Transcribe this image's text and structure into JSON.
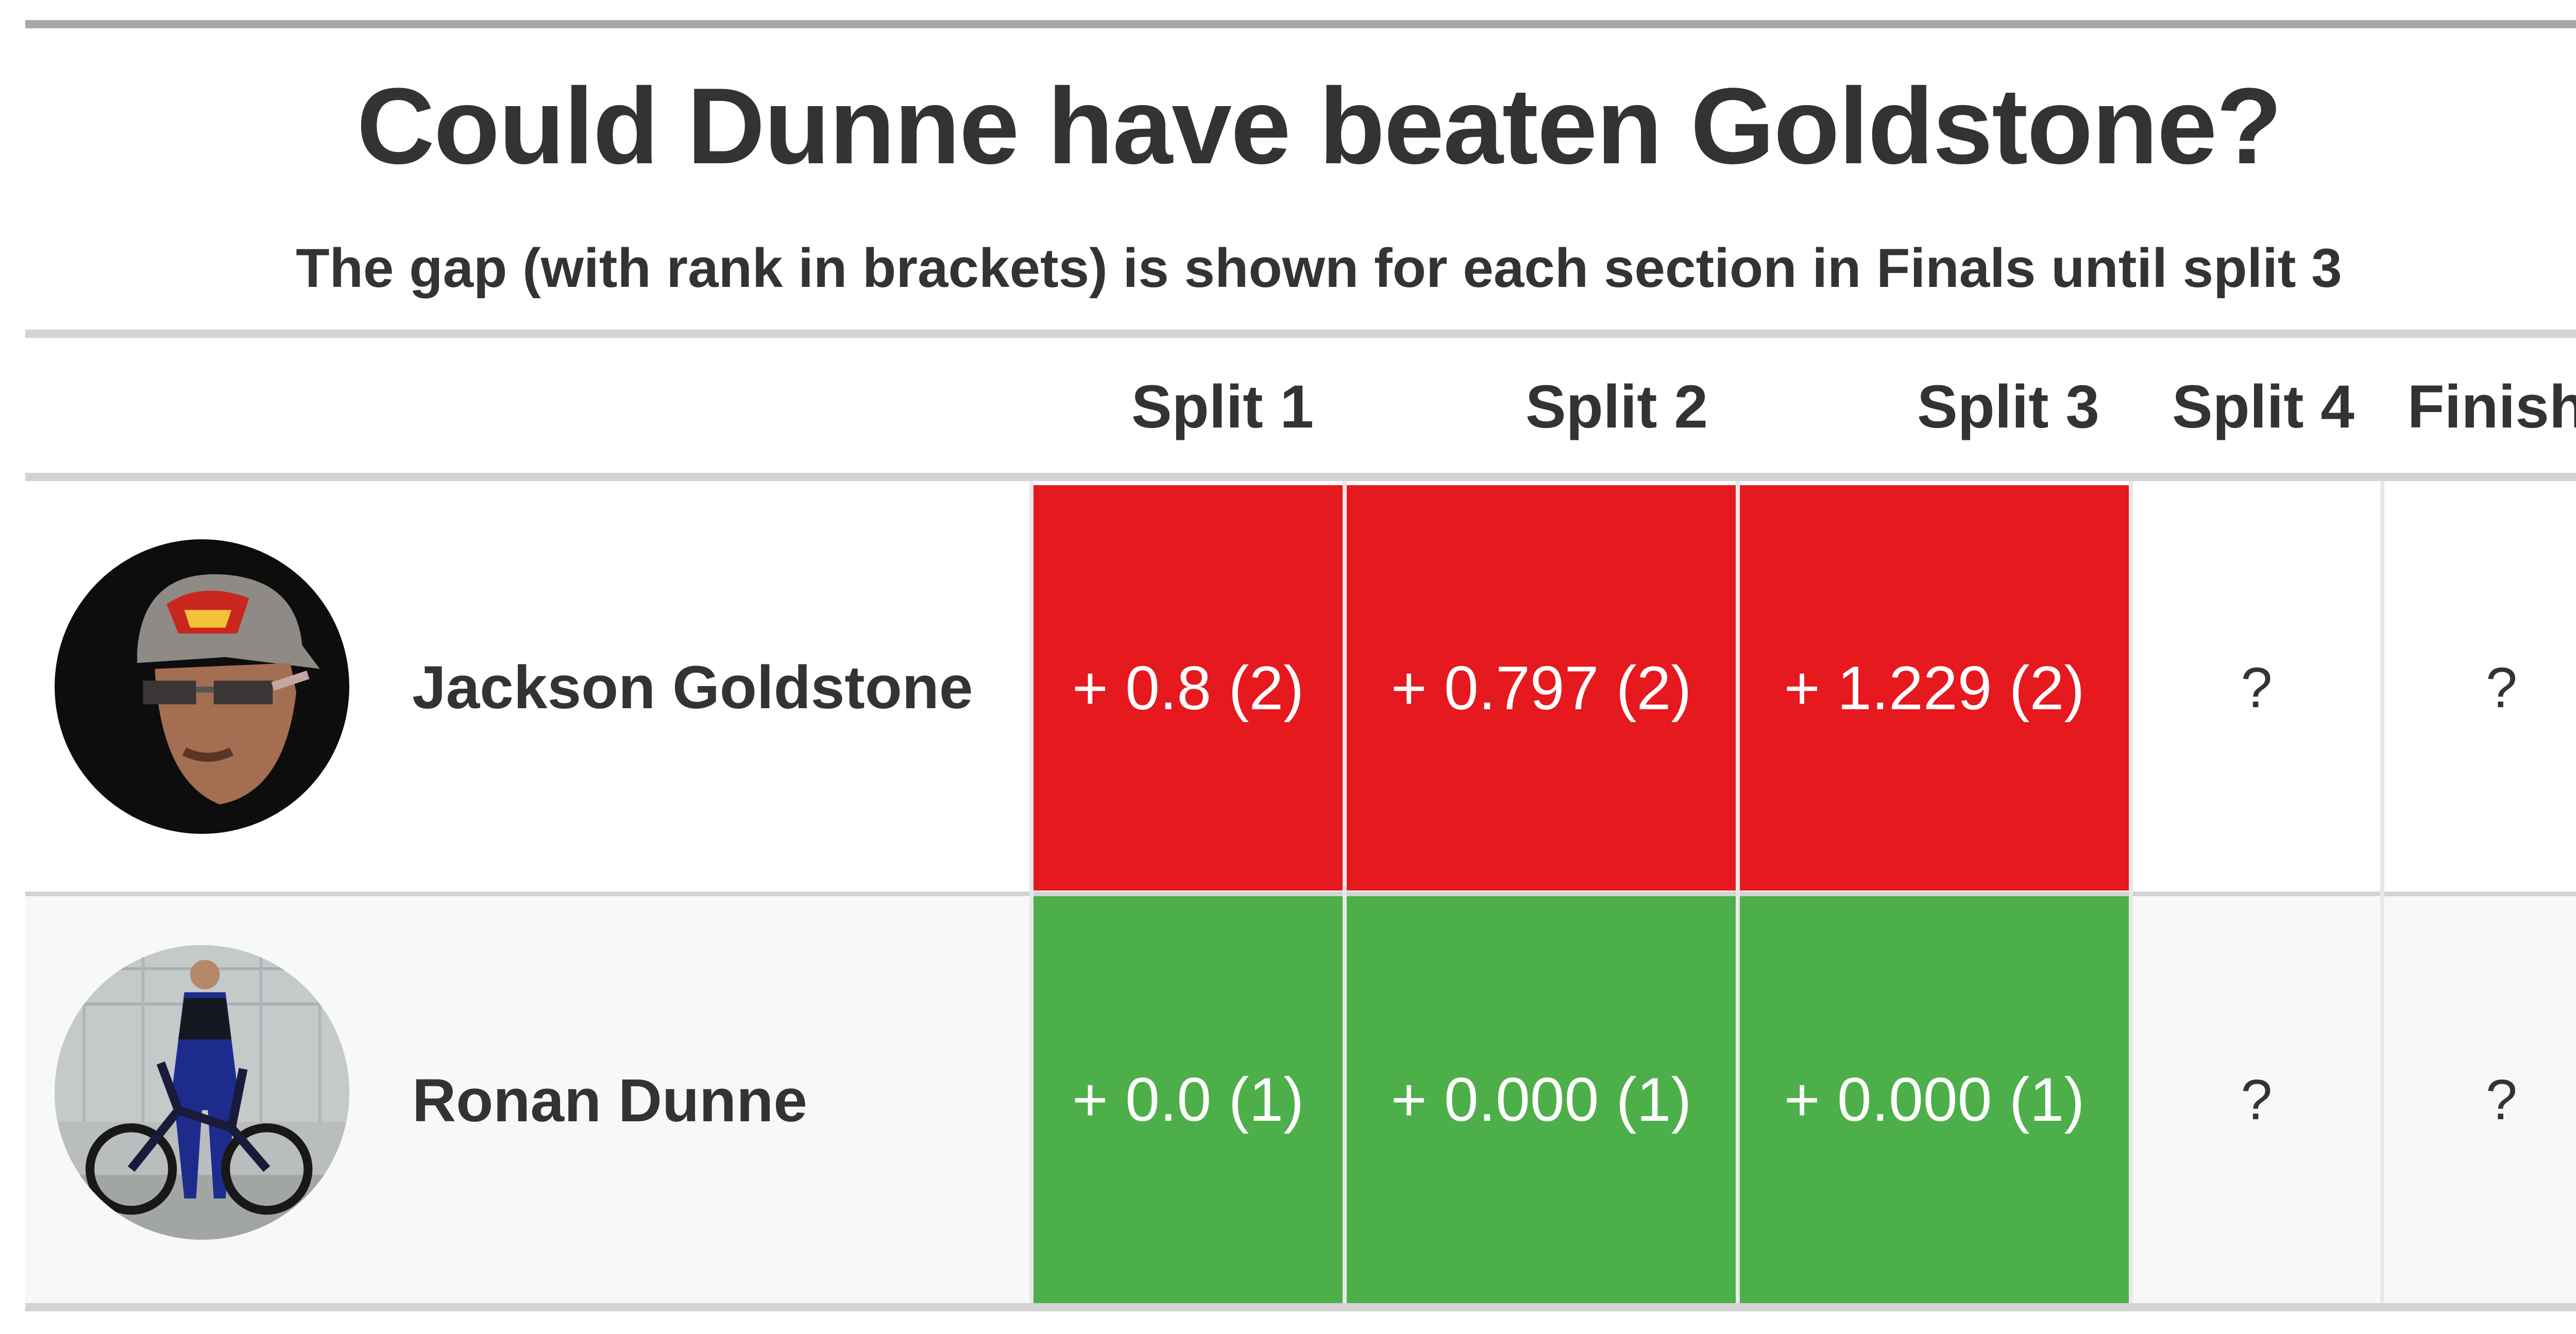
{
  "chart_data": {
    "type": "table",
    "title": "Could Dunne have beaten Goldstone?",
    "subtitle": "The gap (with rank in brackets) is shown for each section in Finals until split 3",
    "columns": [
      "Split 1",
      "Split 2",
      "Split 3",
      "Split 4",
      "Finish"
    ],
    "rows": [
      {
        "name": "Jackson Goldstone",
        "avatar_icon": "rider-portrait-red-cap",
        "cells": [
          "+ 0.8 (2)",
          "+ 0.797 (2)",
          "+ 1.229 (2)",
          "?",
          "?"
        ]
      },
      {
        "name": "Ronan Dunne",
        "avatar_icon": "rider-with-bike",
        "cells": [
          "+ 0.0 (1)",
          "+ 0.000 (1)",
          "+ 0.000 (1)",
          "?",
          "?"
        ]
      }
    ],
    "colors": {
      "behind": "#e5191e",
      "ahead": "#4daf4a",
      "text": "#333333"
    }
  }
}
